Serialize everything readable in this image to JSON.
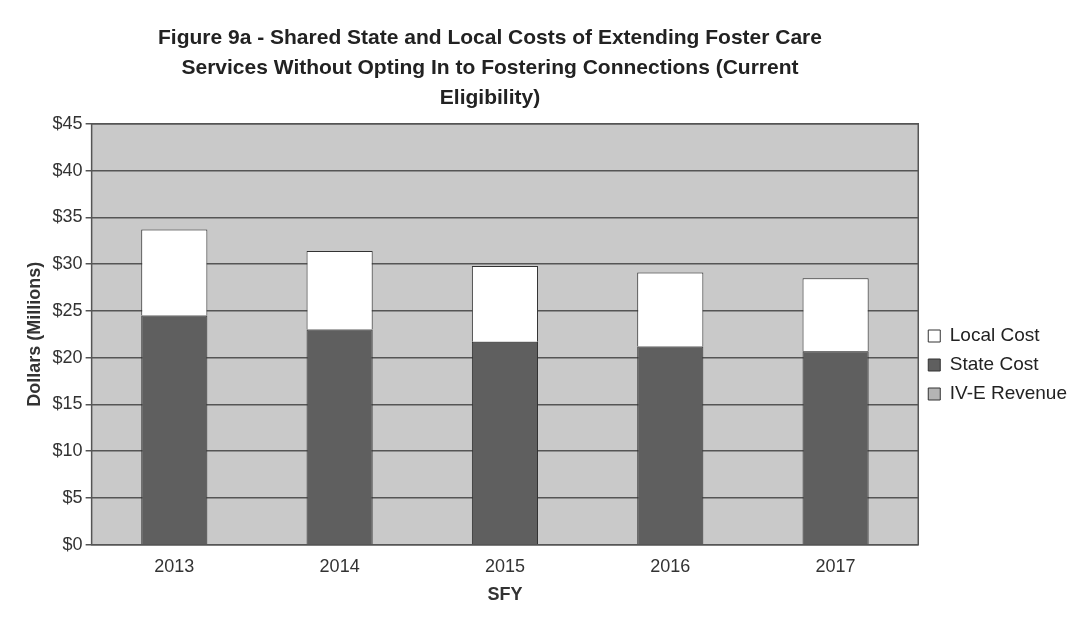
{
  "chart_data": {
    "type": "bar",
    "title": "Figure 9a -  Shared State and Local Costs of Extending Foster Care Services Without Opting In to Fostering Connections (Current Eligibility)",
    "xlabel": "SFY",
    "ylabel": "Dollars (Millions)",
    "categories": [
      "2013",
      "2014",
      "2015",
      "2016",
      "2017"
    ],
    "series": [
      {
        "name": "IV-E Revenue",
        "color": "#b4b4b4",
        "values": [
          0,
          0,
          0,
          0,
          0
        ]
      },
      {
        "name": "State Cost",
        "color": "#5f5f5f",
        "values": [
          24.5,
          23.0,
          21.7,
          21.2,
          20.7
        ]
      },
      {
        "name": "Local Cost",
        "color": "#ffffff",
        "values": [
          9.2,
          8.4,
          8.1,
          7.9,
          7.8
        ]
      }
    ],
    "stacked": true,
    "ylim": [
      0,
      45
    ],
    "yticks": [
      {
        "value": 0,
        "label": "$0"
      },
      {
        "value": 5,
        "label": "$5"
      },
      {
        "value": 10,
        "label": "$10"
      },
      {
        "value": 15,
        "label": "$15"
      },
      {
        "value": 20,
        "label": "$20"
      },
      {
        "value": 25,
        "label": "$25"
      },
      {
        "value": 30,
        "label": "$30"
      },
      {
        "value": 35,
        "label": "$35"
      },
      {
        "value": 40,
        "label": "$40"
      },
      {
        "value": 45,
        "label": "$45"
      }
    ],
    "grid": "y",
    "legend": "right"
  }
}
